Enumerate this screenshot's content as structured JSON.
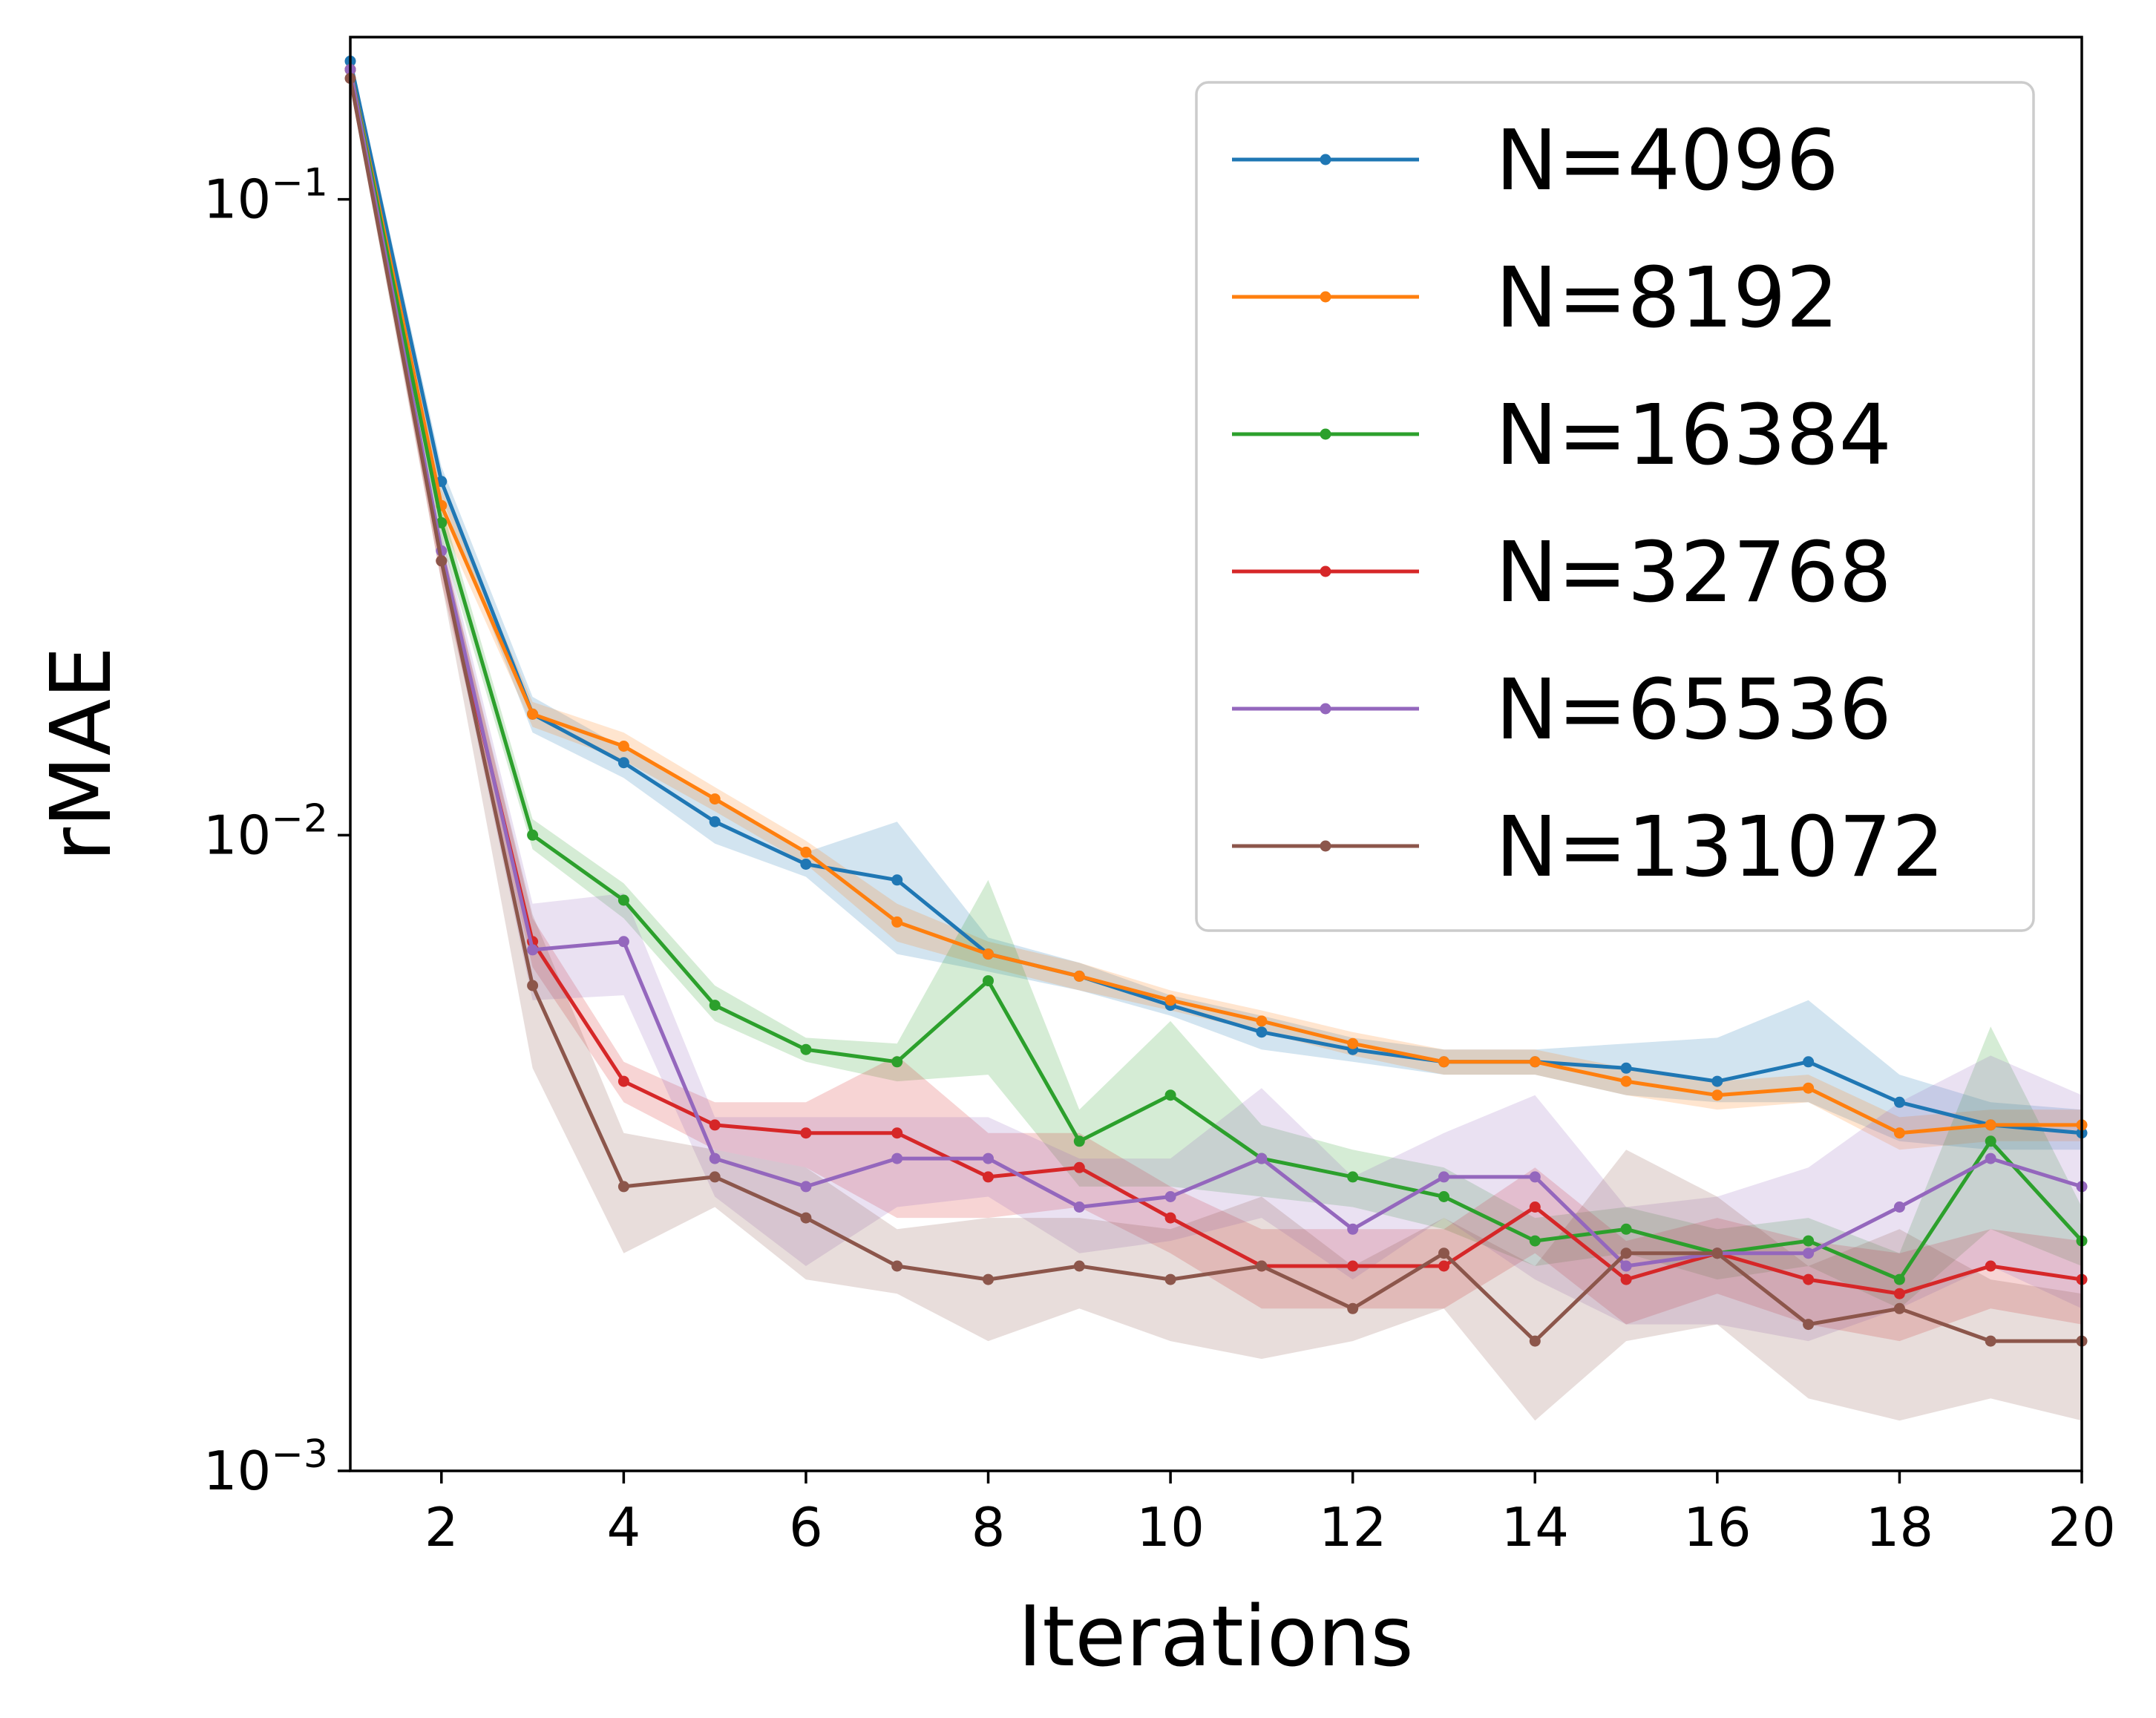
{
  "chart_data": {
    "type": "line",
    "title": "",
    "xlabel": "Iterations",
    "ylabel": "rMAE",
    "xscale": "linear",
    "yscale": "log",
    "xlim": [
      1,
      20
    ],
    "ylim": [
      0.001,
      0.18
    ],
    "grid": false,
    "legend_position": "top-right",
    "x": [
      1,
      2,
      3,
      4,
      5,
      6,
      7,
      8,
      9,
      10,
      11,
      12,
      13,
      14,
      15,
      16,
      17,
      18,
      19,
      20
    ],
    "x_ticks": [
      {
        "value": 2,
        "label": "2"
      },
      {
        "value": 4,
        "label": "4"
      },
      {
        "value": 6,
        "label": "6"
      },
      {
        "value": 8,
        "label": "8"
      },
      {
        "value": 10,
        "label": "10"
      },
      {
        "value": 12,
        "label": "12"
      },
      {
        "value": 14,
        "label": "14"
      },
      {
        "value": 16,
        "label": "16"
      },
      {
        "value": 18,
        "label": "18"
      },
      {
        "value": 20,
        "label": "20"
      }
    ],
    "y_ticks": [
      {
        "value": 0.1,
        "base": "10",
        "exp": "−1"
      },
      {
        "value": 0.01,
        "base": "10",
        "exp": "−2"
      },
      {
        "value": 0.001,
        "base": "10",
        "exp": "−3"
      }
    ],
    "series": [
      {
        "name": "N=4096",
        "color": "#1f77b4",
        "values": [
          0.165,
          0.036,
          0.0155,
          0.013,
          0.0105,
          0.009,
          0.0085,
          0.0065,
          0.006,
          0.0054,
          0.0049,
          0.0046,
          0.0044,
          0.0044,
          0.0043,
          0.0041,
          0.0044,
          0.0038,
          0.0035,
          0.0034
        ],
        "band_lower": [
          0.16,
          0.034,
          0.0145,
          0.0123,
          0.0097,
          0.0086,
          0.0065,
          0.0061,
          0.0057,
          0.0052,
          0.0046,
          0.0044,
          0.0042,
          0.0042,
          0.0039,
          0.0038,
          0.0038,
          0.0033,
          0.0032,
          0.0032
        ],
        "band_upper": [
          0.17,
          0.038,
          0.0165,
          0.0137,
          0.0113,
          0.0094,
          0.0105,
          0.0069,
          0.0063,
          0.0056,
          0.0052,
          0.0048,
          0.0046,
          0.0046,
          0.0047,
          0.0048,
          0.0055,
          0.0042,
          0.0038,
          0.0037
        ]
      },
      {
        "name": "N=8192",
        "color": "#ff7f0e",
        "values": [
          0.16,
          0.033,
          0.0155,
          0.0138,
          0.0114,
          0.0094,
          0.0073,
          0.0065,
          0.006,
          0.0055,
          0.0051,
          0.0047,
          0.0044,
          0.0044,
          0.0041,
          0.0039,
          0.004,
          0.0034,
          0.0035,
          0.0035
        ],
        "band_lower": [
          0.156,
          0.031,
          0.0148,
          0.0131,
          0.0109,
          0.009,
          0.0068,
          0.0062,
          0.0057,
          0.0053,
          0.0049,
          0.0045,
          0.0042,
          0.0042,
          0.0039,
          0.0037,
          0.0038,
          0.0032,
          0.0033,
          0.0033
        ],
        "band_upper": [
          0.164,
          0.035,
          0.0162,
          0.0145,
          0.0119,
          0.0098,
          0.0078,
          0.0068,
          0.0063,
          0.0057,
          0.0053,
          0.0049,
          0.0046,
          0.0046,
          0.0043,
          0.0041,
          0.0042,
          0.0036,
          0.0037,
          0.0037
        ]
      },
      {
        "name": "N=16384",
        "color": "#2ca02c",
        "values": [
          0.16,
          0.031,
          0.01,
          0.0079,
          0.0054,
          0.0046,
          0.0044,
          0.0059,
          0.0033,
          0.0039,
          0.0031,
          0.0029,
          0.0027,
          0.0023,
          0.0024,
          0.0022,
          0.0023,
          0.002,
          0.0033,
          0.0023
        ],
        "band_lower": [
          0.155,
          0.029,
          0.0095,
          0.0074,
          0.0051,
          0.0044,
          0.0041,
          0.0042,
          0.0028,
          0.0028,
          0.0027,
          0.0026,
          0.0024,
          0.0021,
          0.0022,
          0.002,
          0.0021,
          0.0018,
          0.0024,
          0.0021
        ],
        "band_upper": [
          0.165,
          0.033,
          0.0106,
          0.0084,
          0.0058,
          0.0048,
          0.0047,
          0.0085,
          0.0037,
          0.0051,
          0.0035,
          0.0032,
          0.003,
          0.0025,
          0.0026,
          0.0024,
          0.0025,
          0.0022,
          0.005,
          0.0026
        ]
      },
      {
        "name": "N=32768",
        "color": "#d62728",
        "values": [
          0.16,
          0.027,
          0.0068,
          0.0041,
          0.0035,
          0.0034,
          0.0034,
          0.0029,
          0.003,
          0.0025,
          0.0021,
          0.0021,
          0.0021,
          0.0026,
          0.002,
          0.0022,
          0.002,
          0.0019,
          0.0021,
          0.002
        ],
        "band_lower": [
          0.155,
          0.025,
          0.0062,
          0.0038,
          0.0032,
          0.003,
          0.0025,
          0.0025,
          0.0026,
          0.0022,
          0.0018,
          0.0018,
          0.0018,
          0.0022,
          0.0017,
          0.0019,
          0.0017,
          0.0016,
          0.0018,
          0.0017
        ],
        "band_upper": [
          0.165,
          0.029,
          0.0074,
          0.0044,
          0.0038,
          0.0038,
          0.0045,
          0.0034,
          0.0034,
          0.0028,
          0.0024,
          0.0024,
          0.0024,
          0.003,
          0.0023,
          0.0025,
          0.0023,
          0.0022,
          0.0024,
          0.0023
        ]
      },
      {
        "name": "N=65536",
        "color": "#9467bd",
        "values": [
          0.16,
          0.028,
          0.0066,
          0.0068,
          0.0031,
          0.0028,
          0.0031,
          0.0031,
          0.0026,
          0.0027,
          0.0031,
          0.0024,
          0.0029,
          0.0029,
          0.0021,
          0.0022,
          0.0022,
          0.0026,
          0.0031,
          0.0028
        ],
        "band_lower": [
          0.155,
          0.026,
          0.0055,
          0.0056,
          0.0027,
          0.0021,
          0.0026,
          0.0027,
          0.0022,
          0.0023,
          0.0025,
          0.002,
          0.0025,
          0.002,
          0.0017,
          0.0017,
          0.0016,
          0.0018,
          0.0021,
          0.0018
        ],
        "band_upper": [
          0.165,
          0.03,
          0.0078,
          0.0081,
          0.0036,
          0.0036,
          0.0036,
          0.0036,
          0.0031,
          0.0031,
          0.004,
          0.0029,
          0.0034,
          0.0039,
          0.0026,
          0.0027,
          0.003,
          0.0038,
          0.0045,
          0.0039
        ]
      },
      {
        "name": "N=131072",
        "color": "#8c564b",
        "values": [
          0.155,
          0.027,
          0.0058,
          0.0028,
          0.0029,
          0.0025,
          0.0021,
          0.002,
          0.0021,
          0.002,
          0.0021,
          0.0018,
          0.0022,
          0.0016,
          0.0022,
          0.0022,
          0.0017,
          0.0018,
          0.0016,
          0.0016
        ],
        "band_lower": [
          0.15,
          0.025,
          0.0043,
          0.0022,
          0.0026,
          0.002,
          0.0019,
          0.0016,
          0.0018,
          0.0016,
          0.0015,
          0.0016,
          0.0018,
          0.0012,
          0.0016,
          0.0017,
          0.0013,
          0.0012,
          0.0013,
          0.0012
        ],
        "band_upper": [
          0.16,
          0.029,
          0.0075,
          0.0034,
          0.0032,
          0.003,
          0.0024,
          0.0025,
          0.0025,
          0.0024,
          0.0027,
          0.0021,
          0.0025,
          0.0021,
          0.0032,
          0.0027,
          0.0021,
          0.0024,
          0.002,
          0.0019
        ]
      }
    ]
  }
}
